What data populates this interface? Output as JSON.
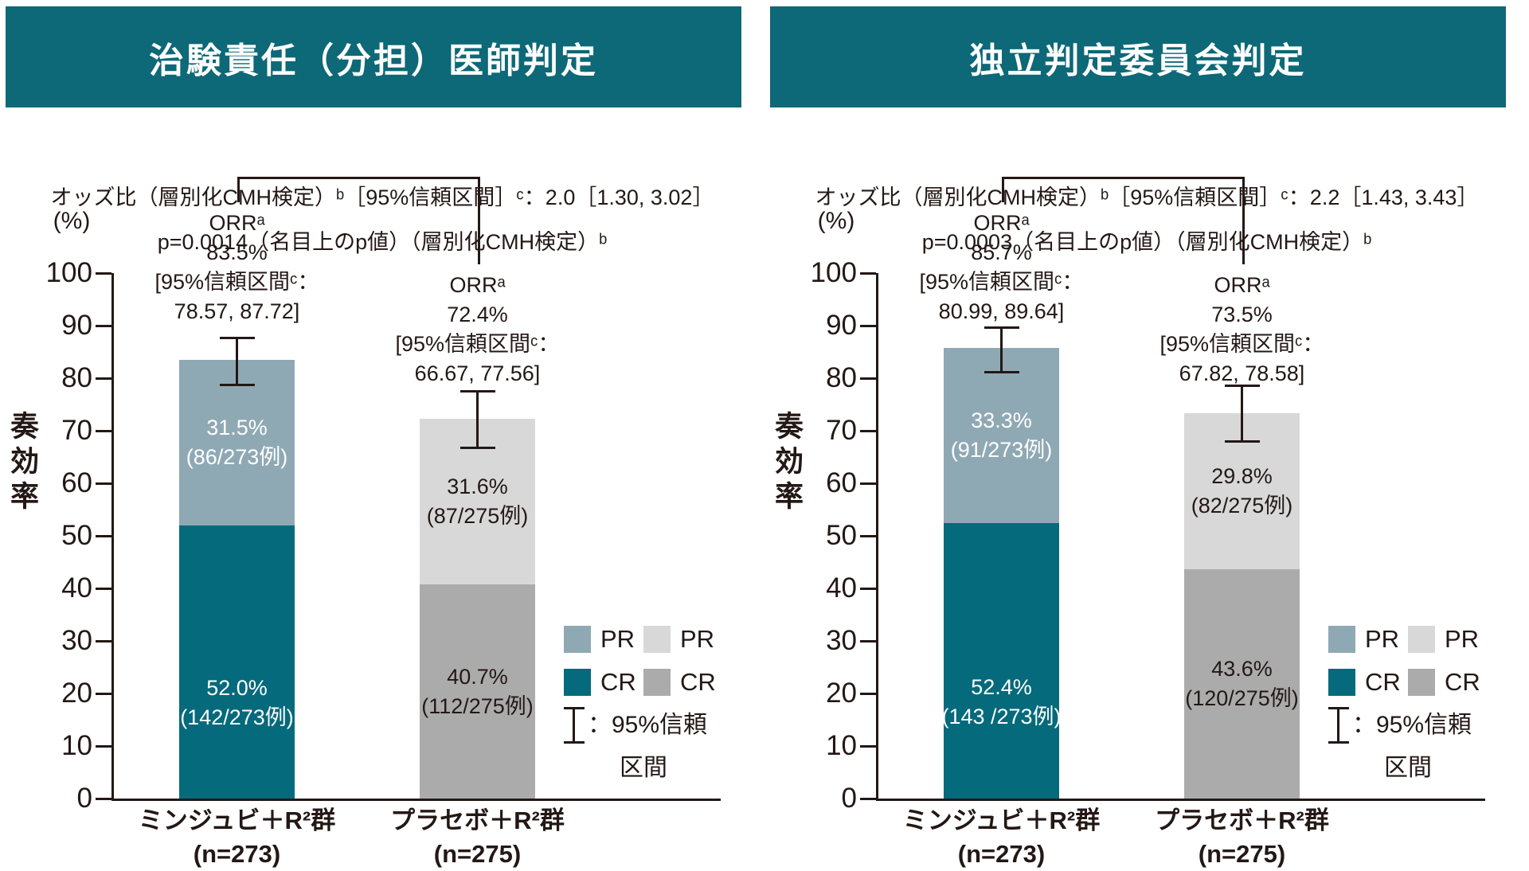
{
  "page": {
    "background": "#ffffff",
    "text_color": "#231815",
    "header_bar_color": "#0d6877"
  },
  "chart_data": [
    {
      "type": "bar",
      "stacked": true,
      "title": "治験責任（分担）医師判定",
      "stats_lines": [
        "オッズ比（層別化CMH検定）ᵇ［95%信頼区間］ᶜ：2.0［1.30, 3.02］",
        "p=0.0014（名目上のp値）（層別化CMH検定）ᵇ"
      ],
      "ylabel": "奏効率",
      "y_unit": "(%)",
      "xlabel": "",
      "ylim": [
        0,
        100
      ],
      "ytick_step": 10,
      "grid": false,
      "legend_position": "inside-right-bottom",
      "categories": [
        "ミンジュビ＋R²群",
        "プラセボ＋R²群"
      ],
      "category_notes": [
        "(n=273)",
        "(n=275)"
      ],
      "series": [
        {
          "name": "CR",
          "values": [
            52.0,
            40.7
          ],
          "segment_labels": [
            [
              "52.0%",
              "(142/273例)"
            ],
            [
              "40.7%",
              "(112/275例)"
            ]
          ],
          "colors": [
            "#056a7b",
            "#ababab"
          ],
          "text_colors": [
            "#ffffff",
            "#231815"
          ]
        },
        {
          "name": "PR",
          "values": [
            31.5,
            31.6
          ],
          "segment_labels": [
            [
              "31.5%",
              "(86/273例)"
            ],
            [
              "31.6%",
              "(87/275例)"
            ]
          ],
          "colors": [
            "#8fa9b4",
            "#d8d8d8"
          ],
          "text_colors": [
            "#ffffff",
            "#231815"
          ]
        }
      ],
      "orr_annotations": [
        {
          "lines": [
            "ORRᵃ",
            "83.5%",
            "[95%信頼区間ᶜ：",
            "78.57, 87.72]"
          ],
          "ci": [
            78.57,
            87.72
          ]
        },
        {
          "lines": [
            "ORRᵃ",
            "72.4%",
            "[95%信頼区間ᶜ：",
            "66.67, 77.56]"
          ],
          "ci": [
            66.67,
            77.56
          ]
        }
      ],
      "legend": {
        "rows": [
          [
            {
              "label": "PR",
              "color": "#8fa9b4"
            },
            {
              "label": "PR",
              "color": "#d8d8d8"
            }
          ],
          [
            {
              "label": "CR",
              "color": "#056a7b"
            },
            {
              "label": "CR",
              "color": "#ababab"
            }
          ]
        ],
        "ci_lines": [
          "：95%信頼",
          "区間"
        ]
      }
    },
    {
      "type": "bar",
      "stacked": true,
      "title": "独立判定委員会判定",
      "stats_lines": [
        "オッズ比（層別化CMH検定）ᵇ［95%信頼区間］ᶜ：2.2［1.43, 3.43］",
        "p=0.0003（名目上のp値）（層別化CMH検定）ᵇ"
      ],
      "ylabel": "奏効率",
      "y_unit": "(%)",
      "xlabel": "",
      "ylim": [
        0,
        100
      ],
      "ytick_step": 10,
      "grid": false,
      "legend_position": "inside-right-bottom",
      "categories": [
        "ミンジュビ＋R²群",
        "プラセボ＋R²群"
      ],
      "category_notes": [
        "(n=273)",
        "(n=275)"
      ],
      "series": [
        {
          "name": "CR",
          "values": [
            52.4,
            43.6
          ],
          "segment_labels": [
            [
              "52.4%",
              "(143 /273例)"
            ],
            [
              "43.6%",
              "(120/275例)"
            ]
          ],
          "colors": [
            "#056a7b",
            "#ababab"
          ],
          "text_colors": [
            "#ffffff",
            "#231815"
          ]
        },
        {
          "name": "PR",
          "values": [
            33.3,
            29.8
          ],
          "segment_labels": [
            [
              "33.3%",
              "(91/273例)"
            ],
            [
              "29.8%",
              "(82/275例)"
            ]
          ],
          "colors": [
            "#8fa9b4",
            "#d8d8d8"
          ],
          "text_colors": [
            "#ffffff",
            "#231815"
          ]
        }
      ],
      "orr_annotations": [
        {
          "lines": [
            "ORRᵃ",
            "85.7%",
            "[95%信頼区間ᶜ：",
            "80.99, 89.64]"
          ],
          "ci": [
            80.99,
            89.64
          ]
        },
        {
          "lines": [
            "ORRᵃ",
            "73.5%",
            "[95%信頼区間ᶜ：",
            "67.82, 78.58]"
          ],
          "ci": [
            67.82,
            78.58
          ]
        }
      ],
      "legend": {
        "rows": [
          [
            {
              "label": "PR",
              "color": "#8fa9b4"
            },
            {
              "label": "PR",
              "color": "#d8d8d8"
            }
          ],
          [
            {
              "label": "CR",
              "color": "#056a7b"
            },
            {
              "label": "CR",
              "color": "#ababab"
            }
          ]
        ],
        "ci_lines": [
          "：95%信頼",
          "区間"
        ]
      }
    }
  ]
}
